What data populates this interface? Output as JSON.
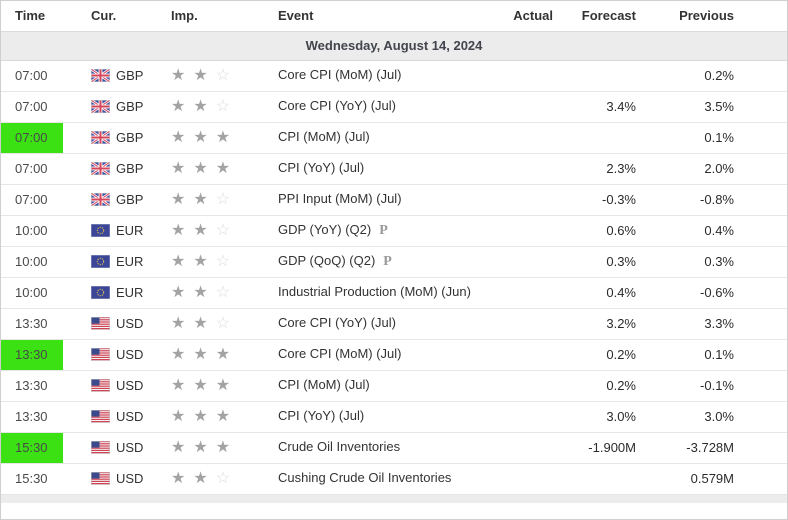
{
  "table": {
    "columns": [
      "Time",
      "Cur.",
      "Imp.",
      "Event",
      "Actual",
      "Forecast",
      "Previous"
    ],
    "date_header": "Wednesday, August 14, 2024",
    "rows": [
      {
        "time": "07:00",
        "highlight": false,
        "currency": "GBP",
        "flag": "gb",
        "importance": 2,
        "event": "Core CPI (MoM) (Jul)",
        "preliminary": false,
        "actual": "",
        "forecast": "",
        "previous": "0.2%"
      },
      {
        "time": "07:00",
        "highlight": false,
        "currency": "GBP",
        "flag": "gb",
        "importance": 2,
        "event": "Core CPI (YoY) (Jul)",
        "preliminary": false,
        "actual": "",
        "forecast": "3.4%",
        "previous": "3.5%"
      },
      {
        "time": "07:00",
        "highlight": true,
        "currency": "GBP",
        "flag": "gb",
        "importance": 3,
        "event": "CPI (MoM) (Jul)",
        "preliminary": false,
        "actual": "",
        "forecast": "",
        "previous": "0.1%"
      },
      {
        "time": "07:00",
        "highlight": false,
        "currency": "GBP",
        "flag": "gb",
        "importance": 3,
        "event": "CPI (YoY) (Jul)",
        "preliminary": false,
        "actual": "",
        "forecast": "2.3%",
        "previous": "2.0%"
      },
      {
        "time": "07:00",
        "highlight": false,
        "currency": "GBP",
        "flag": "gb",
        "importance": 2,
        "event": "PPI Input (MoM) (Jul)",
        "preliminary": false,
        "actual": "",
        "forecast": "-0.3%",
        "previous": "-0.8%"
      },
      {
        "time": "10:00",
        "highlight": false,
        "currency": "EUR",
        "flag": "eu",
        "importance": 2,
        "event": "GDP (YoY) (Q2)",
        "preliminary": true,
        "actual": "",
        "forecast": "0.6%",
        "previous": "0.4%"
      },
      {
        "time": "10:00",
        "highlight": false,
        "currency": "EUR",
        "flag": "eu",
        "importance": 2,
        "event": "GDP (QoQ) (Q2)",
        "preliminary": true,
        "actual": "",
        "forecast": "0.3%",
        "previous": "0.3%"
      },
      {
        "time": "10:00",
        "highlight": false,
        "currency": "EUR",
        "flag": "eu",
        "importance": 2,
        "event": "Industrial Production (MoM) (Jun)",
        "preliminary": false,
        "actual": "",
        "forecast": "0.4%",
        "previous": "-0.6%"
      },
      {
        "time": "13:30",
        "highlight": false,
        "currency": "USD",
        "flag": "us",
        "importance": 2,
        "event": "Core CPI (YoY) (Jul)",
        "preliminary": false,
        "actual": "",
        "forecast": "3.2%",
        "previous": "3.3%"
      },
      {
        "time": "13:30",
        "highlight": true,
        "currency": "USD",
        "flag": "us",
        "importance": 3,
        "event": "Core CPI (MoM) (Jul)",
        "preliminary": false,
        "actual": "",
        "forecast": "0.2%",
        "previous": "0.1%"
      },
      {
        "time": "13:30",
        "highlight": false,
        "currency": "USD",
        "flag": "us",
        "importance": 3,
        "event": "CPI (MoM) (Jul)",
        "preliminary": false,
        "actual": "",
        "forecast": "0.2%",
        "previous": "-0.1%"
      },
      {
        "time": "13:30",
        "highlight": false,
        "currency": "USD",
        "flag": "us",
        "importance": 3,
        "event": "CPI (YoY) (Jul)",
        "preliminary": false,
        "actual": "",
        "forecast": "3.0%",
        "previous": "3.0%"
      },
      {
        "time": "15:30",
        "highlight": true,
        "currency": "USD",
        "flag": "us",
        "importance": 3,
        "event": "Crude Oil Inventories",
        "preliminary": false,
        "actual": "",
        "forecast": "-1.900M",
        "previous": "-3.728M"
      },
      {
        "time": "15:30",
        "highlight": false,
        "currency": "USD",
        "flag": "us",
        "importance": 2,
        "event": "Cushing Crude Oil Inventories",
        "preliminary": false,
        "actual": "",
        "forecast": "",
        "previous": "0.579M"
      }
    ]
  },
  "icons": {
    "star_filled": "★",
    "star_empty": "☆",
    "prelim_marker": "P"
  },
  "colors": {
    "highlight_green": "#3ce114",
    "star_filled": "#a3a3a3",
    "star_empty": "#dcdcdc",
    "date_row_bg": "#ececec"
  }
}
